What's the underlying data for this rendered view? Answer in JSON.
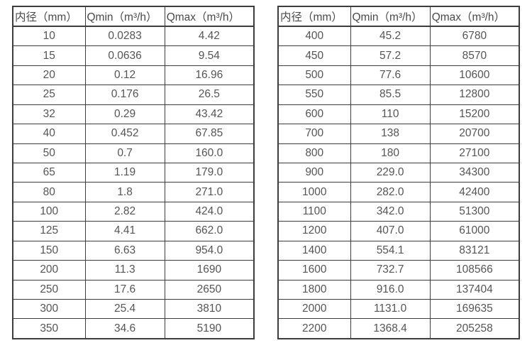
{
  "page": {
    "description": "Flow meter inner-diameter flow range specification tables",
    "background_color": "#ffffff",
    "border_color": "#3d3d3d",
    "text_color": "#555555"
  },
  "tables": [
    {
      "name": "small-diameter-flow-ranges",
      "headers": [
        "内径（mm）",
        "Qmin（m³/h）",
        "Qmax（m³/h）"
      ],
      "rows": [
        [
          "10",
          "0.0283",
          "4.42"
        ],
        [
          "15",
          "0.0636",
          "9.54"
        ],
        [
          "20",
          "0.12",
          "16.96"
        ],
        [
          "25",
          "0.176",
          "26.5"
        ],
        [
          "32",
          "0.29",
          "43.42"
        ],
        [
          "40",
          "0.452",
          "67.85"
        ],
        [
          "50",
          "0.7",
          "160.0"
        ],
        [
          "65",
          "1.19",
          "179.0"
        ],
        [
          "80",
          "1.8",
          "271.0"
        ],
        [
          "100",
          "2.82",
          "424.0"
        ],
        [
          "125",
          "4.41",
          "662.0"
        ],
        [
          "150",
          "6.63",
          "954.0"
        ],
        [
          "200",
          "11.3",
          "1690"
        ],
        [
          "250",
          "17.6",
          "2650"
        ],
        [
          "300",
          "25.4",
          "3810"
        ],
        [
          "350",
          "34.6",
          "5190"
        ]
      ]
    },
    {
      "name": "large-diameter-flow-ranges",
      "headers": [
        "内径（mm）",
        "Qmin（m³/h）",
        "Qmax（m³/h）"
      ],
      "rows": [
        [
          "400",
          "45.2",
          "6780"
        ],
        [
          "450",
          "57.2",
          "8570"
        ],
        [
          "500",
          "77.6",
          "10600"
        ],
        [
          "550",
          "85.5",
          "12800"
        ],
        [
          "600",
          "110",
          "15200"
        ],
        [
          "700",
          "138",
          "20700"
        ],
        [
          "800",
          "180",
          "27100"
        ],
        [
          "900",
          "229.0",
          "34300"
        ],
        [
          "1000",
          "282.0",
          "42400"
        ],
        [
          "1100",
          "342.0",
          "51300"
        ],
        [
          "1200",
          "407.0",
          "61000"
        ],
        [
          "1400",
          "554.1",
          "83121"
        ],
        [
          "1600",
          "732.7",
          "108566"
        ],
        [
          "1800",
          "916.0",
          "137404"
        ],
        [
          "2000",
          "1131.0",
          "169635"
        ],
        [
          "2200",
          "1368.4",
          "205258"
        ]
      ]
    }
  ]
}
